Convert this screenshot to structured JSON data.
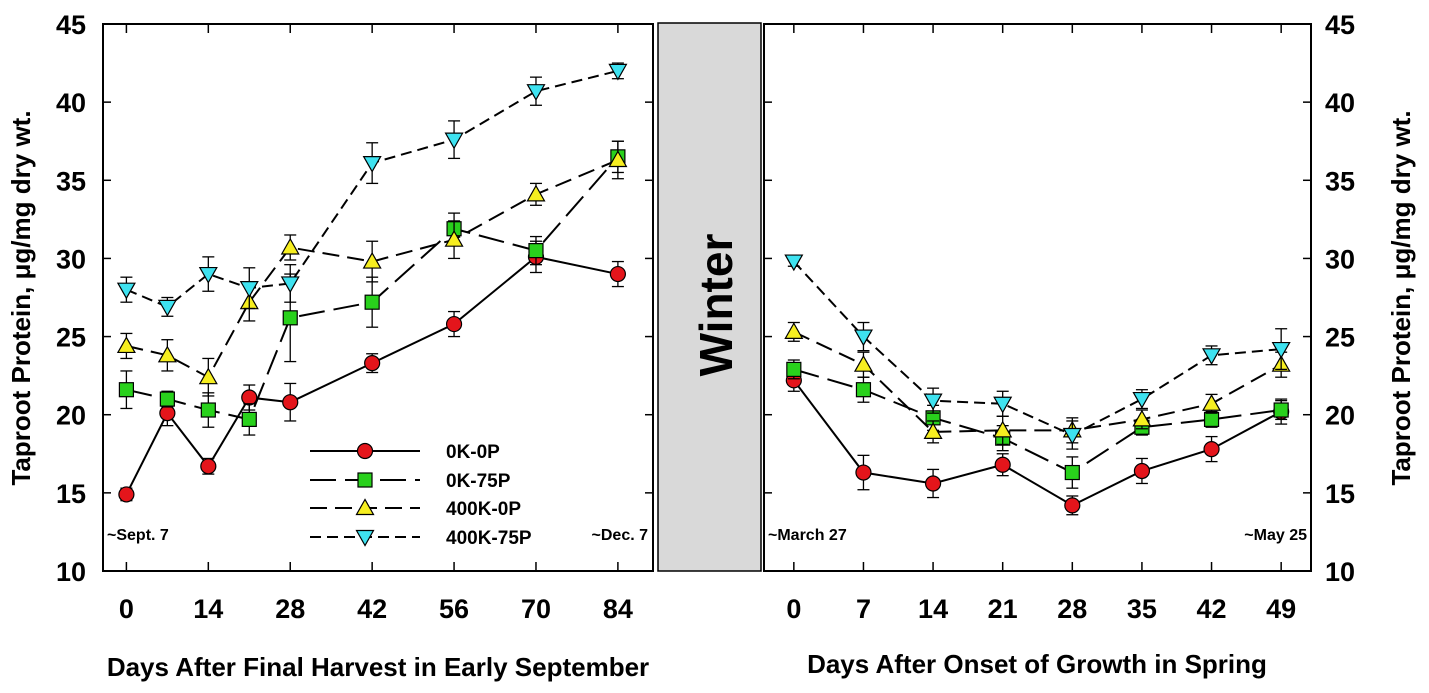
{
  "chart_data": {
    "type": "line",
    "ylabel": "Taproot Protein, μg/mg dry wt.",
    "ylim": [
      10,
      45
    ],
    "yticks": [
      "10",
      "15",
      "20",
      "25",
      "30",
      "35",
      "40",
      "45"
    ],
    "series_styles": [
      {
        "name": "0K-0P",
        "marker": "circle",
        "color": "#e4151b",
        "dash": "solid"
      },
      {
        "name": "0K-75P",
        "marker": "square",
        "color": "#29d11c",
        "dash": "long-dash"
      },
      {
        "name": "400K-0P",
        "marker": "triangle-up",
        "color": "#f6ee20",
        "dash": "dash"
      },
      {
        "name": "400K-75P",
        "marker": "triangle-down",
        "color": "#3ee2f0",
        "dash": "short-dash"
      }
    ],
    "legend_position": "bottom-center of left panel",
    "winter_label": "Winter",
    "panels": [
      {
        "name": "fall",
        "xlabel": "Days After Final Harvest in Early September",
        "x": [
          0,
          7,
          14,
          21,
          28,
          42,
          56,
          70,
          84
        ],
        "xlim": [
          -4,
          90
        ],
        "xticks": [
          "0",
          "14",
          "28",
          "42",
          "56",
          "70",
          "84"
        ],
        "annotations": {
          "start": "~Sept. 7",
          "end": "~Dec. 7"
        },
        "series": [
          {
            "name": "0K-0P",
            "values": [
              14.9,
              20.1,
              16.7,
              21.1,
              20.8,
              23.3,
              25.8,
              30.1,
              29.0
            ],
            "errors": [
              0.4,
              0.8,
              0.5,
              0.8,
              1.2,
              0.6,
              0.8,
              1.0,
              0.8
            ]
          },
          {
            "name": "0K-75P",
            "values": [
              21.6,
              21.0,
              20.3,
              19.7,
              26.2,
              27.2,
              31.9,
              30.5,
              36.5
            ],
            "errors": [
              1.2,
              0.5,
              1.1,
              1.0,
              2.8,
              1.6,
              1.0,
              0.9,
              1.0
            ]
          },
          {
            "name": "400K-0P",
            "values": [
              24.4,
              23.8,
              22.4,
              27.2,
              30.7,
              29.8,
              31.2,
              34.1,
              36.3
            ],
            "errors": [
              0.8,
              1.0,
              1.2,
              1.2,
              0.8,
              1.3,
              1.2,
              0.7,
              1.2
            ]
          },
          {
            "name": "400K-75P",
            "values": [
              28.0,
              26.9,
              29.0,
              28.1,
              28.4,
              36.1,
              37.6,
              40.7,
              42.0
            ],
            "errors": [
              0.8,
              0.6,
              1.1,
              1.3,
              1.2,
              1.3,
              1.2,
              0.9,
              0.5
            ]
          }
        ]
      },
      {
        "name": "spring",
        "xlabel": "Days After Onset of Growth in Spring",
        "x": [
          0,
          7,
          14,
          21,
          28,
          35,
          42,
          49
        ],
        "xlim": [
          -3,
          52
        ],
        "xticks": [
          "0",
          "7",
          "14",
          "21",
          "28",
          "35",
          "42",
          "49"
        ],
        "annotations": {
          "start": "~March 27",
          "end": "~May 25"
        },
        "series": [
          {
            "name": "0K-0P",
            "values": [
              22.2,
              16.3,
              15.6,
              16.8,
              14.2,
              16.4,
              17.8,
              20.2
            ],
            "errors": [
              0.7,
              1.1,
              0.9,
              0.7,
              0.6,
              0.8,
              0.8,
              0.8
            ]
          },
          {
            "name": "0K-75P",
            "values": [
              22.9,
              21.6,
              19.8,
              18.5,
              16.3,
              19.2,
              19.7,
              20.3
            ],
            "errors": [
              0.6,
              0.8,
              0.8,
              0.8,
              1.0,
              0.5,
              0.5,
              0.6
            ]
          },
          {
            "name": "400K-0P",
            "values": [
              25.3,
              23.2,
              18.9,
              19.0,
              19.0,
              19.7,
              20.7,
              23.2
            ],
            "errors": [
              0.6,
              0.8,
              0.7,
              0.9,
              0.8,
              0.6,
              0.6,
              0.8
            ]
          },
          {
            "name": "400K-75P",
            "values": [
              29.8,
              25.0,
              20.9,
              20.7,
              18.7,
              21.0,
              23.8,
              24.2
            ],
            "errors": [
              0.3,
              0.9,
              0.8,
              0.8,
              0.9,
              0.6,
              0.6,
              1.3
            ]
          }
        ]
      }
    ]
  }
}
